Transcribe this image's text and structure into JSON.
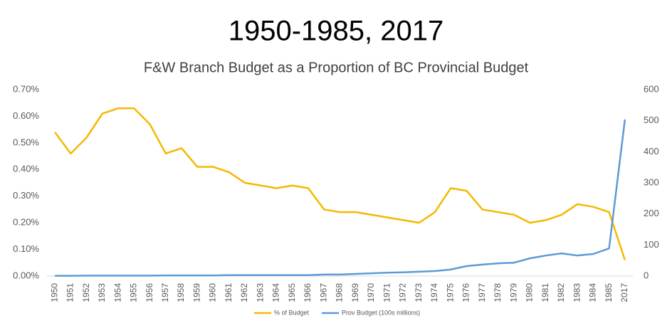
{
  "chart_data": {
    "type": "line",
    "title": "1950-1985, 2017",
    "subtitle": "F&W Branch Budget as a Proportion of BC Provincial Budget",
    "categories": [
      "1950",
      "1951",
      "1952",
      "1953",
      "1954",
      "1955",
      "1956",
      "1957",
      "1958",
      "1959",
      "1960",
      "1961",
      "1962",
      "1963",
      "1964",
      "1965",
      "1966",
      "1967",
      "1968",
      "1969",
      "1970",
      "1971",
      "1972",
      "1973",
      "1974",
      "1975",
      "1976",
      "1977",
      "1978",
      "1979",
      "1980",
      "1981",
      "1982",
      "1983",
      "1984",
      "1985",
      "2017"
    ],
    "series": [
      {
        "name": "% of Budget",
        "color": "#f5b800",
        "axis": "y",
        "values": [
          0.54,
          0.46,
          0.52,
          0.61,
          0.63,
          0.63,
          0.57,
          0.46,
          0.48,
          0.41,
          0.41,
          0.39,
          0.35,
          0.34,
          0.33,
          0.34,
          0.33,
          0.25,
          0.24,
          0.24,
          0.23,
          0.22,
          0.21,
          0.2,
          0.24,
          0.33,
          0.32,
          0.25,
          0.24,
          0.23,
          0.2,
          0.21,
          0.23,
          0.27,
          0.26,
          0.24,
          0.06
        ]
      },
      {
        "name": "Prov Budget (100s millions)",
        "color": "#5b9bd5",
        "axis": "y2",
        "values": [
          1,
          1,
          1.5,
          1.5,
          1.5,
          1.5,
          1.5,
          2,
          2,
          2,
          2,
          3,
          3,
          3,
          3,
          3,
          3,
          5,
          5,
          7,
          9,
          11,
          12,
          14,
          16,
          21,
          32,
          37,
          41,
          43,
          57,
          66,
          73,
          66,
          71,
          89,
          504
        ]
      }
    ],
    "ylim": [
      0,
      0.7
    ],
    "yticks": [
      {
        "value": 0,
        "label": "0.00%"
      },
      {
        "value": 0.1,
        "label": "0.10%"
      },
      {
        "value": 0.2,
        "label": "0.20%"
      },
      {
        "value": 0.3,
        "label": "0.30%"
      },
      {
        "value": 0.4,
        "label": "0.40%"
      },
      {
        "value": 0.5,
        "label": "0.50%"
      },
      {
        "value": 0.6,
        "label": "0.60%"
      },
      {
        "value": 0.7,
        "label": "0.70%"
      }
    ],
    "y2lim": [
      0,
      600
    ],
    "y2ticks": [
      0,
      100,
      200,
      300,
      400,
      500,
      600
    ],
    "grid": false
  }
}
